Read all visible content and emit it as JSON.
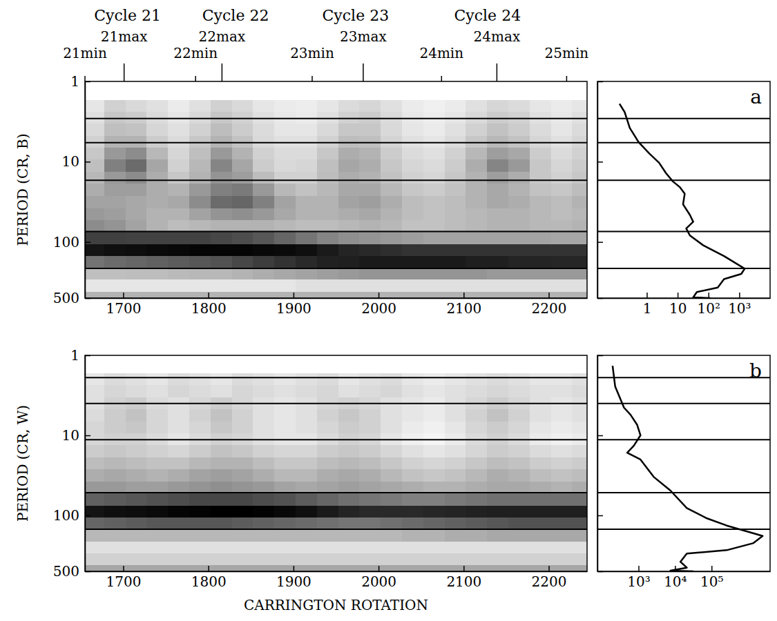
{
  "chart_data": [
    {
      "type": "heatmap",
      "ylabel": "PERIOD (CR, B)",
      "xlim": [
        1655,
        2245
      ],
      "ylim": [
        1,
        500
      ],
      "log": "y",
      "xticks": [
        1700,
        1800,
        1900,
        2000,
        2100,
        2200
      ],
      "yticks": [
        1,
        10,
        100,
        500
      ],
      "x2ticks": [
        {
          "value": 1655,
          "label": "21min"
        },
        {
          "value": 1701,
          "label": "21max"
        },
        {
          "value": 1785,
          "label": "22min"
        },
        {
          "value": 1816,
          "label": "22max"
        },
        {
          "value": 1922,
          "label": "23min"
        },
        {
          "value": 1982,
          "label": "23max"
        },
        {
          "value": 2074,
          "label": "24min"
        },
        {
          "value": 2139,
          "label": "24max"
        },
        {
          "value": 2221,
          "label": "25min"
        }
      ],
      "cycles": [
        {
          "value": 1705,
          "label": "Cycle 21"
        },
        {
          "value": 1832,
          "label": "Cycle 22"
        },
        {
          "value": 1973,
          "label": "Cycle 23"
        },
        {
          "value": 2128,
          "label": "Cycle 24"
        }
      ],
      "hlines": [
        2.9,
        5.8,
        17,
        74,
        213
      ],
      "zlim": [
        0,
        1
      ],
      "x": [
        1665,
        1690,
        1715,
        1740,
        1765,
        1790,
        1815,
        1840,
        1865,
        1890,
        1915,
        1940,
        1965,
        1990,
        2015,
        2040,
        2065,
        2090,
        2115,
        2140,
        2165,
        2190,
        2215,
        2240
      ],
      "y": [
        2,
        2.8,
        4,
        5.6,
        8,
        11,
        16,
        22,
        32,
        45,
        63,
        90,
        125,
        180,
        250,
        350,
        500
      ],
      "z": [
        [
          0.1,
          0.18,
          0.15,
          0.12,
          0.08,
          0.12,
          0.18,
          0.15,
          0.1,
          0.08,
          0.07,
          0.1,
          0.14,
          0.16,
          0.12,
          0.08,
          0.06,
          0.08,
          0.12,
          0.16,
          0.14,
          0.1,
          0.08,
          0.1
        ],
        [
          0.12,
          0.22,
          0.2,
          0.14,
          0.1,
          0.15,
          0.22,
          0.18,
          0.12,
          0.09,
          0.08,
          0.12,
          0.18,
          0.2,
          0.14,
          0.09,
          0.07,
          0.1,
          0.15,
          0.2,
          0.18,
          0.12,
          0.09,
          0.12
        ],
        [
          0.15,
          0.25,
          0.24,
          0.16,
          0.12,
          0.18,
          0.26,
          0.2,
          0.14,
          0.1,
          0.1,
          0.15,
          0.22,
          0.22,
          0.15,
          0.1,
          0.08,
          0.12,
          0.18,
          0.24,
          0.2,
          0.14,
          0.1,
          0.14
        ],
        [
          0.18,
          0.3,
          0.3,
          0.2,
          0.14,
          0.22,
          0.3,
          0.24,
          0.15,
          0.12,
          0.12,
          0.18,
          0.26,
          0.25,
          0.17,
          0.12,
          0.1,
          0.14,
          0.22,
          0.28,
          0.24,
          0.16,
          0.12,
          0.16
        ],
        [
          0.22,
          0.4,
          0.45,
          0.28,
          0.16,
          0.25,
          0.4,
          0.3,
          0.18,
          0.14,
          0.14,
          0.22,
          0.32,
          0.3,
          0.2,
          0.14,
          0.12,
          0.18,
          0.28,
          0.38,
          0.34,
          0.2,
          0.14,
          0.18
        ],
        [
          0.25,
          0.5,
          0.58,
          0.35,
          0.18,
          0.28,
          0.48,
          0.35,
          0.2,
          0.15,
          0.16,
          0.25,
          0.35,
          0.32,
          0.22,
          0.16,
          0.14,
          0.2,
          0.32,
          0.48,
          0.4,
          0.22,
          0.16,
          0.2
        ],
        [
          0.28,
          0.4,
          0.45,
          0.32,
          0.22,
          0.3,
          0.42,
          0.38,
          0.26,
          0.18,
          0.18,
          0.26,
          0.32,
          0.3,
          0.24,
          0.18,
          0.16,
          0.22,
          0.3,
          0.38,
          0.32,
          0.22,
          0.18,
          0.22
        ],
        [
          0.32,
          0.38,
          0.38,
          0.32,
          0.3,
          0.4,
          0.5,
          0.52,
          0.4,
          0.28,
          0.24,
          0.28,
          0.34,
          0.34,
          0.28,
          0.22,
          0.2,
          0.24,
          0.3,
          0.34,
          0.3,
          0.24,
          0.22,
          0.26
        ],
        [
          0.36,
          0.36,
          0.34,
          0.32,
          0.34,
          0.45,
          0.58,
          0.6,
          0.5,
          0.36,
          0.3,
          0.3,
          0.36,
          0.38,
          0.32,
          0.26,
          0.24,
          0.26,
          0.3,
          0.34,
          0.32,
          0.28,
          0.26,
          0.3
        ],
        [
          0.4,
          0.38,
          0.34,
          0.3,
          0.3,
          0.36,
          0.42,
          0.44,
          0.4,
          0.34,
          0.3,
          0.3,
          0.32,
          0.34,
          0.3,
          0.26,
          0.24,
          0.26,
          0.28,
          0.3,
          0.3,
          0.28,
          0.26,
          0.28
        ],
        [
          0.45,
          0.42,
          0.36,
          0.3,
          0.26,
          0.28,
          0.3,
          0.3,
          0.3,
          0.28,
          0.26,
          0.26,
          0.28,
          0.3,
          0.28,
          0.24,
          0.24,
          0.26,
          0.28,
          0.3,
          0.3,
          0.28,
          0.28,
          0.3
        ],
        [
          0.75,
          0.75,
          0.74,
          0.74,
          0.74,
          0.74,
          0.72,
          0.7,
          0.66,
          0.6,
          0.54,
          0.48,
          0.44,
          0.42,
          0.4,
          0.38,
          0.36,
          0.36,
          0.36,
          0.36,
          0.36,
          0.36,
          0.35,
          0.35
        ],
        [
          0.92,
          0.94,
          0.95,
          0.96,
          0.97,
          0.98,
          0.98,
          0.98,
          0.97,
          0.96,
          0.94,
          0.9,
          0.86,
          0.84,
          0.82,
          0.8,
          0.8,
          0.8,
          0.8,
          0.8,
          0.8,
          0.8,
          0.8,
          0.8
        ],
        [
          0.55,
          0.58,
          0.6,
          0.62,
          0.64,
          0.66,
          0.68,
          0.72,
          0.76,
          0.8,
          0.84,
          0.87,
          0.88,
          0.9,
          0.9,
          0.9,
          0.9,
          0.9,
          0.88,
          0.88,
          0.86,
          0.86,
          0.85,
          0.85
        ],
        [
          0.25,
          0.25,
          0.26,
          0.26,
          0.27,
          0.28,
          0.28,
          0.3,
          0.32,
          0.34,
          0.36,
          0.38,
          0.4,
          0.42,
          0.42,
          0.42,
          0.42,
          0.42,
          0.42,
          0.4,
          0.4,
          0.4,
          0.4,
          0.4
        ],
        [
          0.1,
          0.1,
          0.1,
          0.1,
          0.1,
          0.1,
          0.1,
          0.1,
          0.1,
          0.1,
          0.12,
          0.12,
          0.12,
          0.12,
          0.12,
          0.12,
          0.12,
          0.12,
          0.12,
          0.12,
          0.12,
          0.12,
          0.12,
          0.12
        ],
        [
          0.3,
          0.3,
          0.3,
          0.3,
          0.3,
          0.3,
          0.3,
          0.3,
          0.3,
          0.3,
          0.3,
          0.3,
          0.3,
          0.3,
          0.3,
          0.3,
          0.3,
          0.3,
          0.3,
          0.3,
          0.3,
          0.3,
          0.3,
          0.3
        ]
      ]
    },
    {
      "type": "line",
      "title": "a",
      "color": "#000000",
      "xlim": [
        0.025,
        10000
      ],
      "ylim": [
        1,
        500
      ],
      "log": true,
      "tick_labels": "x",
      "xticks": [
        1,
        10,
        {
          "value": 100,
          "label": "10²"
        },
        {
          "value": 1000,
          "label": "10³"
        }
      ],
      "yticks": [
        1,
        10,
        100,
        500
      ],
      "x": [
        0.13,
        0.19,
        0.28,
        0.54,
        1.2,
        2.5,
        4.2,
        7,
        11.7,
        17,
        15,
        25,
        32,
        19,
        25,
        70,
        320,
        1500,
        1160,
        320,
        200,
        42,
        32,
        115
      ],
      "y": [
        1.9,
        2.4,
        3.8,
        5.7,
        7.9,
        10.3,
        13.9,
        17.6,
        20.7,
        25,
        34,
        46,
        56,
        68,
        83,
        111,
        150,
        215,
        250,
        290,
        370,
        420,
        490,
        500
      ]
    },
    {
      "type": "heatmap",
      "ylabel": "PERIOD (CR, W)",
      "xlabel": "CARRINGTON ROTATION",
      "xlim": [
        1655,
        2245
      ],
      "ylim": [
        1,
        500
      ],
      "log": "y",
      "xticks": [
        1700,
        1800,
        1900,
        2000,
        2100,
        2200
      ],
      "yticks": [
        1,
        10,
        100,
        500
      ],
      "hlines": [
        1.9,
        4,
        11.3,
        52,
        149
      ],
      "zlim": [
        0,
        1
      ],
      "x": [
        1665,
        1690,
        1715,
        1740,
        1765,
        1790,
        1815,
        1840,
        1865,
        1890,
        1915,
        1940,
        1965,
        1990,
        2015,
        2040,
        2065,
        2090,
        2115,
        2140,
        2165,
        2190,
        2215,
        2240
      ],
      "y": [
        2,
        2.8,
        4,
        5.6,
        8,
        11,
        16,
        22,
        32,
        45,
        63,
        90,
        125,
        180,
        250,
        350,
        500
      ],
      "z": [
        [
          0.1,
          0.14,
          0.12,
          0.1,
          0.14,
          0.12,
          0.1,
          0.14,
          0.12,
          0.1,
          0.12,
          0.14,
          0.1,
          0.12,
          0.14,
          0.1,
          0.08,
          0.1,
          0.12,
          0.14,
          0.12,
          0.1,
          0.1,
          0.12
        ],
        [
          0.12,
          0.16,
          0.14,
          0.12,
          0.16,
          0.14,
          0.12,
          0.16,
          0.14,
          0.12,
          0.14,
          0.16,
          0.12,
          0.14,
          0.16,
          0.12,
          0.1,
          0.12,
          0.14,
          0.16,
          0.14,
          0.12,
          0.12,
          0.14
        ],
        [
          0.12,
          0.18,
          0.2,
          0.14,
          0.12,
          0.16,
          0.2,
          0.16,
          0.12,
          0.1,
          0.12,
          0.16,
          0.18,
          0.16,
          0.12,
          0.1,
          0.08,
          0.12,
          0.16,
          0.2,
          0.16,
          0.12,
          0.1,
          0.12
        ],
        [
          0.14,
          0.2,
          0.24,
          0.16,
          0.12,
          0.18,
          0.24,
          0.18,
          0.12,
          0.1,
          0.12,
          0.18,
          0.22,
          0.18,
          0.12,
          0.1,
          0.08,
          0.12,
          0.18,
          0.24,
          0.18,
          0.12,
          0.1,
          0.12
        ],
        [
          0.16,
          0.2,
          0.22,
          0.16,
          0.12,
          0.16,
          0.22,
          0.18,
          0.12,
          0.1,
          0.12,
          0.16,
          0.2,
          0.18,
          0.12,
          0.08,
          0.06,
          0.1,
          0.16,
          0.2,
          0.16,
          0.1,
          0.08,
          0.1
        ],
        [
          0.16,
          0.18,
          0.18,
          0.14,
          0.1,
          0.14,
          0.18,
          0.16,
          0.12,
          0.1,
          0.1,
          0.14,
          0.18,
          0.16,
          0.1,
          0.06,
          0.04,
          0.08,
          0.14,
          0.18,
          0.14,
          0.08,
          0.06,
          0.08
        ],
        [
          0.2,
          0.22,
          0.2,
          0.18,
          0.16,
          0.2,
          0.24,
          0.22,
          0.18,
          0.16,
          0.16,
          0.2,
          0.22,
          0.2,
          0.16,
          0.12,
          0.1,
          0.12,
          0.16,
          0.2,
          0.18,
          0.14,
          0.12,
          0.14
        ],
        [
          0.26,
          0.28,
          0.26,
          0.24,
          0.24,
          0.28,
          0.3,
          0.3,
          0.26,
          0.22,
          0.22,
          0.26,
          0.28,
          0.26,
          0.22,
          0.18,
          0.16,
          0.18,
          0.22,
          0.26,
          0.24,
          0.2,
          0.18,
          0.2
        ],
        [
          0.32,
          0.34,
          0.32,
          0.3,
          0.32,
          0.36,
          0.38,
          0.36,
          0.32,
          0.28,
          0.28,
          0.32,
          0.34,
          0.32,
          0.28,
          0.24,
          0.22,
          0.24,
          0.28,
          0.32,
          0.3,
          0.26,
          0.24,
          0.26
        ],
        [
          0.4,
          0.4,
          0.38,
          0.38,
          0.4,
          0.42,
          0.44,
          0.42,
          0.4,
          0.36,
          0.34,
          0.36,
          0.38,
          0.36,
          0.34,
          0.32,
          0.3,
          0.3,
          0.32,
          0.34,
          0.34,
          0.32,
          0.3,
          0.32
        ],
        [
          0.62,
          0.64,
          0.66,
          0.68,
          0.7,
          0.72,
          0.72,
          0.72,
          0.7,
          0.68,
          0.64,
          0.6,
          0.56,
          0.54,
          0.52,
          0.5,
          0.5,
          0.52,
          0.54,
          0.56,
          0.56,
          0.56,
          0.56,
          0.56
        ],
        [
          0.92,
          0.94,
          0.95,
          0.96,
          0.98,
          0.99,
          1.0,
          1.0,
          0.99,
          0.97,
          0.94,
          0.9,
          0.86,
          0.84,
          0.84,
          0.84,
          0.85,
          0.86,
          0.87,
          0.88,
          0.88,
          0.88,
          0.88,
          0.88
        ],
        [
          0.6,
          0.62,
          0.64,
          0.66,
          0.66,
          0.66,
          0.66,
          0.64,
          0.62,
          0.6,
          0.58,
          0.56,
          0.54,
          0.54,
          0.56,
          0.58,
          0.6,
          0.62,
          0.64,
          0.66,
          0.68,
          0.68,
          0.68,
          0.68
        ],
        [
          0.28,
          0.28,
          0.28,
          0.28,
          0.28,
          0.28,
          0.28,
          0.28,
          0.28,
          0.28,
          0.28,
          0.28,
          0.28,
          0.28,
          0.28,
          0.3,
          0.3,
          0.32,
          0.32,
          0.34,
          0.34,
          0.34,
          0.34,
          0.34
        ],
        [
          0.12,
          0.12,
          0.12,
          0.12,
          0.12,
          0.12,
          0.12,
          0.12,
          0.12,
          0.12,
          0.12,
          0.12,
          0.12,
          0.12,
          0.12,
          0.12,
          0.12,
          0.12,
          0.12,
          0.12,
          0.12,
          0.12,
          0.12,
          0.12
        ],
        [
          0.18,
          0.18,
          0.18,
          0.18,
          0.18,
          0.18,
          0.18,
          0.18,
          0.18,
          0.18,
          0.18,
          0.18,
          0.18,
          0.18,
          0.18,
          0.18,
          0.18,
          0.18,
          0.18,
          0.18,
          0.18,
          0.18,
          0.18,
          0.18
        ],
        [
          0.35,
          0.35,
          0.35,
          0.35,
          0.35,
          0.35,
          0.35,
          0.35,
          0.35,
          0.35,
          0.35,
          0.35,
          0.35,
          0.35,
          0.35,
          0.35,
          0.35,
          0.35,
          0.35,
          0.35,
          0.35,
          0.35,
          0.35,
          0.35
        ]
      ]
    },
    {
      "type": "line",
      "title": "b",
      "color": "#000000",
      "xlim": [
        75,
        4000000
      ],
      "ylim": [
        1,
        500
      ],
      "log": true,
      "tick_labels": "x",
      "xticks": [
        {
          "value": 1000,
          "label": "10³"
        },
        {
          "value": 10000,
          "label": "10⁴"
        },
        {
          "value": 100000,
          "label": "10⁵"
        }
      ],
      "yticks": [
        1,
        10,
        100,
        500
      ],
      "x": [
        195,
        230,
        400,
        600,
        920,
        1130,
        740,
        490,
        1130,
        2600,
        7500,
        21000,
        75000,
        260000,
        2500000,
        1400000,
        260000,
        21000,
        14000,
        21000,
        7500,
        32000
      ],
      "y": [
        1.35,
        2.46,
        4.5,
        5.5,
        7.4,
        10,
        13.5,
        16.5,
        20,
        33,
        49,
        81,
        109,
        134,
        181,
        222,
        272,
        300,
        380,
        450,
        490,
        500
      ]
    }
  ]
}
